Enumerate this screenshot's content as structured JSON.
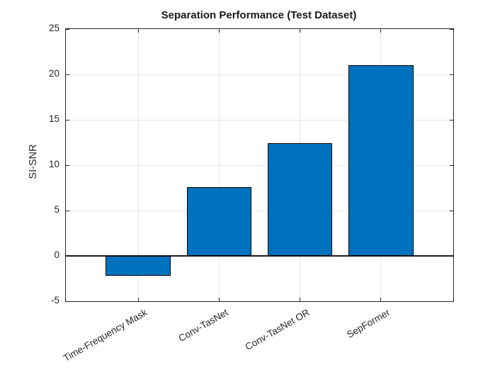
{
  "chart_data": {
    "type": "bar",
    "title": "Separation Performance (Test Dataset)",
    "xlabel": "",
    "ylabel": "SI-SNR",
    "categories": [
      "Time-Frequency Mask",
      "Conv-TasNet",
      "Conv-TasNet OR",
      "SepFormer"
    ],
    "values": [
      -2.2,
      7.6,
      12.4,
      21.0
    ],
    "ylim": [
      -5,
      25
    ],
    "yticks": [
      -5,
      0,
      5,
      10,
      15,
      20,
      25
    ],
    "grid": true,
    "legend": null,
    "x_tick_rotation_deg": 30,
    "colors": {
      "bar_fill": "#0072BD",
      "bar_edge": "#000000",
      "grid_line": "#e6e6e6",
      "axis_line": "#262626",
      "zero_line": "#1a1a1a",
      "text": "#262626",
      "background": "#ffffff"
    }
  }
}
